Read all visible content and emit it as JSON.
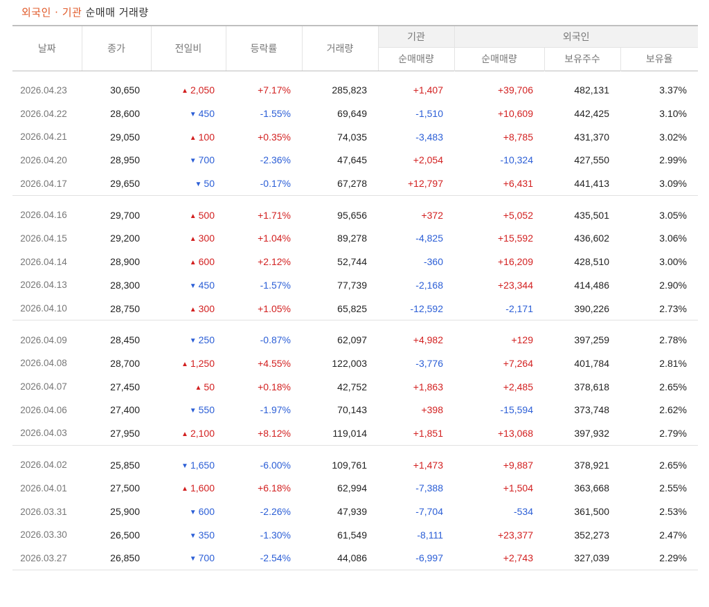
{
  "title": {
    "highlight": "외국인 · 기관",
    "rest": "순매매 거래량"
  },
  "colors": {
    "up": "#d21f1f",
    "down": "#2b5ed6",
    "title_accent": "#e05a2a"
  },
  "header": {
    "date": "날짜",
    "close": "종가",
    "change": "전일비",
    "rate": "등락률",
    "volume": "거래량",
    "inst_group": "기관",
    "foreign_group": "외국인",
    "inst_net": "순매매량",
    "foreign_net": "순매매량",
    "foreign_holdings": "보유주수",
    "foreign_ratio": "보유율"
  },
  "groups": [
    {
      "rows": [
        {
          "date": "2026.04.23",
          "close": "30,650",
          "dir": "up",
          "change": "2,050",
          "rate": "+7.17%",
          "volume": "285,823",
          "inst": "+1,407",
          "foreign": "+39,706",
          "holdings": "482,131",
          "ratio": "3.37%"
        },
        {
          "date": "2026.04.22",
          "close": "28,600",
          "dir": "down",
          "change": "450",
          "rate": "-1.55%",
          "volume": "69,649",
          "inst": "-1,510",
          "foreign": "+10,609",
          "holdings": "442,425",
          "ratio": "3.10%"
        },
        {
          "date": "2026.04.21",
          "close": "29,050",
          "dir": "up",
          "change": "100",
          "rate": "+0.35%",
          "volume": "74,035",
          "inst": "-3,483",
          "foreign": "+8,785",
          "holdings": "431,370",
          "ratio": "3.02%"
        },
        {
          "date": "2026.04.20",
          "close": "28,950",
          "dir": "down",
          "change": "700",
          "rate": "-2.36%",
          "volume": "47,645",
          "inst": "+2,054",
          "foreign": "-10,324",
          "holdings": "427,550",
          "ratio": "2.99%"
        },
        {
          "date": "2026.04.17",
          "close": "29,650",
          "dir": "down",
          "change": "50",
          "rate": "-0.17%",
          "volume": "67,278",
          "inst": "+12,797",
          "foreign": "+6,431",
          "holdings": "441,413",
          "ratio": "3.09%"
        }
      ]
    },
    {
      "rows": [
        {
          "date": "2026.04.16",
          "close": "29,700",
          "dir": "up",
          "change": "500",
          "rate": "+1.71%",
          "volume": "95,656",
          "inst": "+372",
          "foreign": "+5,052",
          "holdings": "435,501",
          "ratio": "3.05%"
        },
        {
          "date": "2026.04.15",
          "close": "29,200",
          "dir": "up",
          "change": "300",
          "rate": "+1.04%",
          "volume": "89,278",
          "inst": "-4,825",
          "foreign": "+15,592",
          "holdings": "436,602",
          "ratio": "3.06%"
        },
        {
          "date": "2026.04.14",
          "close": "28,900",
          "dir": "up",
          "change": "600",
          "rate": "+2.12%",
          "volume": "52,744",
          "inst": "-360",
          "foreign": "+16,209",
          "holdings": "428,510",
          "ratio": "3.00%"
        },
        {
          "date": "2026.04.13",
          "close": "28,300",
          "dir": "down",
          "change": "450",
          "rate": "-1.57%",
          "volume": "77,739",
          "inst": "-2,168",
          "foreign": "+23,344",
          "holdings": "414,486",
          "ratio": "2.90%"
        },
        {
          "date": "2026.04.10",
          "close": "28,750",
          "dir": "up",
          "change": "300",
          "rate": "+1.05%",
          "volume": "65,825",
          "inst": "-12,592",
          "foreign": "-2,171",
          "holdings": "390,226",
          "ratio": "2.73%"
        }
      ]
    },
    {
      "rows": [
        {
          "date": "2026.04.09",
          "close": "28,450",
          "dir": "down",
          "change": "250",
          "rate": "-0.87%",
          "volume": "62,097",
          "inst": "+4,982",
          "foreign": "+129",
          "holdings": "397,259",
          "ratio": "2.78%"
        },
        {
          "date": "2026.04.08",
          "close": "28,700",
          "dir": "up",
          "change": "1,250",
          "rate": "+4.55%",
          "volume": "122,003",
          "inst": "-3,776",
          "foreign": "+7,264",
          "holdings": "401,784",
          "ratio": "2.81%"
        },
        {
          "date": "2026.04.07",
          "close": "27,450",
          "dir": "up",
          "change": "50",
          "rate": "+0.18%",
          "volume": "42,752",
          "inst": "+1,863",
          "foreign": "+2,485",
          "holdings": "378,618",
          "ratio": "2.65%"
        },
        {
          "date": "2026.04.06",
          "close": "27,400",
          "dir": "down",
          "change": "550",
          "rate": "-1.97%",
          "volume": "70,143",
          "inst": "+398",
          "foreign": "-15,594",
          "holdings": "373,748",
          "ratio": "2.62%"
        },
        {
          "date": "2026.04.03",
          "close": "27,950",
          "dir": "up",
          "change": "2,100",
          "rate": "+8.12%",
          "volume": "119,014",
          "inst": "+1,851",
          "foreign": "+13,068",
          "holdings": "397,932",
          "ratio": "2.79%"
        }
      ]
    },
    {
      "rows": [
        {
          "date": "2026.04.02",
          "close": "25,850",
          "dir": "down",
          "change": "1,650",
          "rate": "-6.00%",
          "volume": "109,761",
          "inst": "+1,473",
          "foreign": "+9,887",
          "holdings": "378,921",
          "ratio": "2.65%"
        },
        {
          "date": "2026.04.01",
          "close": "27,500",
          "dir": "up",
          "change": "1,600",
          "rate": "+6.18%",
          "volume": "62,994",
          "inst": "-7,388",
          "foreign": "+1,504",
          "holdings": "363,668",
          "ratio": "2.55%"
        },
        {
          "date": "2026.03.31",
          "close": "25,900",
          "dir": "down",
          "change": "600",
          "rate": "-2.26%",
          "volume": "47,939",
          "inst": "-7,704",
          "foreign": "-534",
          "holdings": "361,500",
          "ratio": "2.53%"
        },
        {
          "date": "2026.03.30",
          "close": "26,500",
          "dir": "down",
          "change": "350",
          "rate": "-1.30%",
          "volume": "61,549",
          "inst": "-8,111",
          "foreign": "+23,377",
          "holdings": "352,273",
          "ratio": "2.47%"
        },
        {
          "date": "2026.03.27",
          "close": "26,850",
          "dir": "down",
          "change": "700",
          "rate": "-2.54%",
          "volume": "44,086",
          "inst": "-6,997",
          "foreign": "+2,743",
          "holdings": "327,039",
          "ratio": "2.29%"
        }
      ]
    }
  ]
}
